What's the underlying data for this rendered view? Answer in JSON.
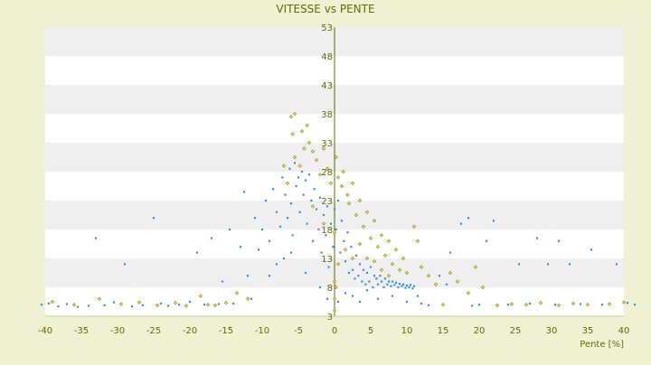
{
  "chart_data": {
    "type": "scatter",
    "title": "VITESSE vs PENTE",
    "xlabel": "Pente [%]",
    "ylabel": "",
    "xlim": [
      -40,
      40
    ],
    "ylim": [
      3,
      53
    ],
    "x_ticks": [
      -40,
      -35,
      -30,
      -25,
      -20,
      -15,
      -10,
      -5,
      0,
      5,
      10,
      15,
      20,
      25,
      30,
      35,
      40
    ],
    "y_ticks": [
      3,
      8,
      13,
      18,
      23,
      28,
      33,
      38,
      43,
      48,
      53
    ],
    "x_ticks_labels": [
      "-40",
      "-35",
      "-30",
      "-25",
      "-20",
      "-15",
      "-10",
      "-5",
      "0",
      "5",
      "10",
      "15",
      "20",
      "25",
      "30",
      "35",
      "40"
    ],
    "y_ticks_labels": [
      "3",
      "8",
      "13",
      "18",
      "23",
      "28",
      "33",
      "38",
      "43",
      "48",
      "53"
    ],
    "grid": "horizontal bands",
    "colors": {
      "background": "#eef2d2",
      "band_light": "#ffffff",
      "band_dark": "#efefef",
      "axis": "#556b00",
      "text": "#5a6e00",
      "series_blue": "#3a8fd6",
      "series_olive": "#8a8a1a"
    },
    "series": [
      {
        "color": "#3a8fd6",
        "marker": "dot",
        "points": [
          [
            -40.5,
            5.0
          ],
          [
            -39.5,
            5.2
          ],
          [
            -38.2,
            4.7
          ],
          [
            -37.0,
            5.1
          ],
          [
            -35.5,
            4.6
          ],
          [
            -34.0,
            4.8
          ],
          [
            -33.0,
            16.5
          ],
          [
            -31.8,
            4.9
          ],
          [
            -30.5,
            5.4
          ],
          [
            -29.0,
            12.0
          ],
          [
            -28.0,
            4.7
          ],
          [
            -26.5,
            4.9
          ],
          [
            -25.0,
            20.0
          ],
          [
            -24.0,
            5.2
          ],
          [
            -23.0,
            4.8
          ],
          [
            -21.5,
            5.0
          ],
          [
            -20.0,
            5.5
          ],
          [
            -19.0,
            14.0
          ],
          [
            -18.0,
            5.0
          ],
          [
            -17.0,
            16.5
          ],
          [
            -16.0,
            5.1
          ],
          [
            -15.5,
            9.0
          ],
          [
            -14.5,
            18.0
          ],
          [
            -14.0,
            5.2
          ],
          [
            -13.0,
            15.0
          ],
          [
            -12.5,
            24.5
          ],
          [
            -12.0,
            10.0
          ],
          [
            -11.5,
            6.0
          ],
          [
            -11.0,
            20.0
          ],
          [
            -10.5,
            14.5
          ],
          [
            -10.0,
            18.0
          ],
          [
            -9.5,
            23.0
          ],
          [
            -9.0,
            16.0
          ],
          [
            -8.5,
            25.0
          ],
          [
            -8.0,
            21.0
          ],
          [
            -7.5,
            18.5
          ],
          [
            -7.2,
            27.0
          ],
          [
            -7.0,
            13.0
          ],
          [
            -6.8,
            24.0
          ],
          [
            -6.5,
            20.0
          ],
          [
            -6.2,
            28.5
          ],
          [
            -6.0,
            22.5
          ],
          [
            -5.8,
            17.0
          ],
          [
            -5.5,
            29.5
          ],
          [
            -5.3,
            25.5
          ],
          [
            -5.0,
            27.0
          ],
          [
            -4.8,
            21.0
          ],
          [
            -4.5,
            28.0
          ],
          [
            -4.3,
            24.0
          ],
          [
            -4.0,
            26.5
          ],
          [
            -3.8,
            19.0
          ],
          [
            -3.5,
            27.5
          ],
          [
            -3.2,
            23.0
          ],
          [
            -3.0,
            16.0
          ],
          [
            -2.8,
            25.0
          ],
          [
            -2.5,
            21.5
          ],
          [
            -2.2,
            18.0
          ],
          [
            -2.0,
            23.5
          ],
          [
            -1.8,
            14.0
          ],
          [
            -1.5,
            20.5
          ],
          [
            -1.2,
            17.0
          ],
          [
            -1.0,
            22.0
          ],
          [
            -0.8,
            11.5
          ],
          [
            -0.5,
            19.0
          ],
          [
            -0.2,
            15.0
          ],
          [
            0.0,
            21.5
          ],
          [
            0.2,
            18.0
          ],
          [
            0.5,
            23.0
          ],
          [
            0.8,
            14.0
          ],
          [
            1.0,
            19.5
          ],
          [
            1.3,
            16.0
          ],
          [
            1.5,
            12.5
          ],
          [
            1.8,
            17.5
          ],
          [
            2.0,
            10.5
          ],
          [
            2.3,
            15.0
          ],
          [
            2.5,
            11.0
          ],
          [
            2.8,
            9.5
          ],
          [
            3.0,
            13.5
          ],
          [
            3.3,
            10.0
          ],
          [
            3.5,
            12.0
          ],
          [
            3.8,
            9.0
          ],
          [
            4.0,
            11.0
          ],
          [
            4.3,
            8.5
          ],
          [
            4.5,
            10.5
          ],
          [
            4.8,
            9.0
          ],
          [
            5.0,
            11.5
          ],
          [
            5.3,
            8.0
          ],
          [
            5.5,
            10.0
          ],
          [
            5.8,
            9.5
          ],
          [
            6.0,
            8.5
          ],
          [
            6.3,
            10.0
          ],
          [
            6.5,
            9.0
          ],
          [
            6.8,
            8.0
          ],
          [
            7.0,
            9.5
          ],
          [
            7.3,
            8.5
          ],
          [
            7.5,
            9.0
          ],
          [
            7.8,
            8.2
          ],
          [
            8.0,
            9.0
          ],
          [
            8.3,
            8.4
          ],
          [
            8.5,
            8.8
          ],
          [
            8.8,
            8.0
          ],
          [
            9.0,
            8.6
          ],
          [
            9.3,
            8.2
          ],
          [
            9.5,
            8.5
          ],
          [
            9.8,
            7.9
          ],
          [
            10.0,
            8.3
          ],
          [
            10.3,
            8.0
          ],
          [
            10.5,
            8.4
          ],
          [
            10.8,
            7.8
          ],
          [
            11.0,
            8.2
          ],
          [
            11.5,
            6.5
          ],
          [
            12.0,
            5.2
          ],
          [
            13.0,
            4.9
          ],
          [
            14.5,
            10.0
          ],
          [
            15.5,
            8.5
          ],
          [
            16.0,
            14.0
          ],
          [
            17.5,
            19.0
          ],
          [
            18.5,
            20.0
          ],
          [
            19.0,
            4.8
          ],
          [
            20.0,
            5.0
          ],
          [
            21.0,
            16.0
          ],
          [
            22.0,
            19.5
          ],
          [
            24.0,
            5.0
          ],
          [
            25.5,
            12.0
          ],
          [
            27.0,
            5.2
          ],
          [
            28.0,
            16.5
          ],
          [
            29.5,
            12.0
          ],
          [
            30.5,
            5.0
          ],
          [
            31.0,
            16.0
          ],
          [
            32.5,
            12.0
          ],
          [
            34.0,
            5.1
          ],
          [
            35.5,
            14.5
          ],
          [
            37.0,
            5.0
          ],
          [
            39.0,
            12.0
          ],
          [
            40.5,
            5.3
          ],
          [
            41.5,
            5.0
          ],
          [
            -9.0,
            10.0
          ],
          [
            -8.0,
            12.0
          ],
          [
            -6.0,
            14.0
          ],
          [
            -4.0,
            10.5
          ],
          [
            -2.0,
            8.0
          ],
          [
            -1.0,
            6.0
          ],
          [
            0.5,
            5.5
          ],
          [
            1.5,
            7.0
          ],
          [
            2.5,
            6.5
          ],
          [
            3.5,
            5.5
          ],
          [
            4.5,
            7.5
          ],
          [
            6.0,
            6.0
          ],
          [
            8.0,
            6.5
          ],
          [
            10.0,
            5.5
          ]
        ]
      },
      {
        "color": "#8a8a1a",
        "marker": "diamond",
        "points": [
          [
            -39.0,
            5.5
          ],
          [
            -36.0,
            5.0
          ],
          [
            -32.5,
            6.0
          ],
          [
            -29.5,
            5.1
          ],
          [
            -27.0,
            5.4
          ],
          [
            -24.5,
            4.9
          ],
          [
            -22.0,
            5.3
          ],
          [
            -20.5,
            4.8
          ],
          [
            -18.5,
            6.5
          ],
          [
            -17.5,
            5.0
          ],
          [
            -16.5,
            4.9
          ],
          [
            -15.0,
            5.3
          ],
          [
            -13.5,
            7.0
          ],
          [
            -12.0,
            6.0
          ],
          [
            -6.0,
            37.5
          ],
          [
            -5.5,
            38.0
          ],
          [
            -5.8,
            34.5
          ],
          [
            -4.5,
            35.0
          ],
          [
            -3.8,
            36.0
          ],
          [
            -4.2,
            32.0
          ],
          [
            -3.5,
            33.0
          ],
          [
            -3.0,
            31.5
          ],
          [
            -5.5,
            30.5
          ],
          [
            -4.8,
            29.0
          ],
          [
            -2.5,
            30.0
          ],
          [
            -1.5,
            32.0
          ],
          [
            -2.0,
            27.5
          ],
          [
            -1.0,
            28.5
          ],
          [
            -0.5,
            26.0
          ],
          [
            0.2,
            30.5
          ],
          [
            0.5,
            27.0
          ],
          [
            1.0,
            25.5
          ],
          [
            1.2,
            28.0
          ],
          [
            1.8,
            24.0
          ],
          [
            2.0,
            22.5
          ],
          [
            2.5,
            26.0
          ],
          [
            3.0,
            20.5
          ],
          [
            3.5,
            23.0
          ],
          [
            4.0,
            18.5
          ],
          [
            4.5,
            21.0
          ],
          [
            5.0,
            16.5
          ],
          [
            5.5,
            19.5
          ],
          [
            6.0,
            15.0
          ],
          [
            6.5,
            17.0
          ],
          [
            7.0,
            13.5
          ],
          [
            7.5,
            16.0
          ],
          [
            8.0,
            12.0
          ],
          [
            8.5,
            14.5
          ],
          [
            9.0,
            11.0
          ],
          [
            9.5,
            13.0
          ],
          [
            10.0,
            10.5
          ],
          [
            11.0,
            18.5
          ],
          [
            11.5,
            16.0
          ],
          [
            12.0,
            11.5
          ],
          [
            13.0,
            10.0
          ],
          [
            14.0,
            8.5
          ],
          [
            15.0,
            5.0
          ],
          [
            16.0,
            10.5
          ],
          [
            17.0,
            9.0
          ],
          [
            18.5,
            7.0
          ],
          [
            19.5,
            11.5
          ],
          [
            20.5,
            8.0
          ],
          [
            22.5,
            4.9
          ],
          [
            24.5,
            5.1
          ],
          [
            26.5,
            5.0
          ],
          [
            28.5,
            5.3
          ],
          [
            31.0,
            4.9
          ],
          [
            33.0,
            5.2
          ],
          [
            35.0,
            5.0
          ],
          [
            38.0,
            5.1
          ],
          [
            40.0,
            5.4
          ],
          [
            -7.0,
            29.0
          ],
          [
            -6.5,
            26.0
          ],
          [
            -3.0,
            22.0
          ],
          [
            -1.5,
            19.0
          ],
          [
            0.0,
            17.5
          ],
          [
            0.5,
            12.0
          ],
          [
            1.5,
            14.5
          ],
          [
            2.5,
            13.0
          ],
          [
            3.5,
            15.5
          ],
          [
            4.5,
            13.0
          ],
          [
            5.5,
            12.5
          ],
          [
            6.5,
            11.0
          ],
          [
            7.5,
            10.0
          ],
          [
            0.0,
            4.0
          ],
          [
            0.0,
            6.0
          ],
          [
            0.0,
            9.0
          ],
          [
            0.2,
            8.0
          ]
        ]
      }
    ]
  }
}
